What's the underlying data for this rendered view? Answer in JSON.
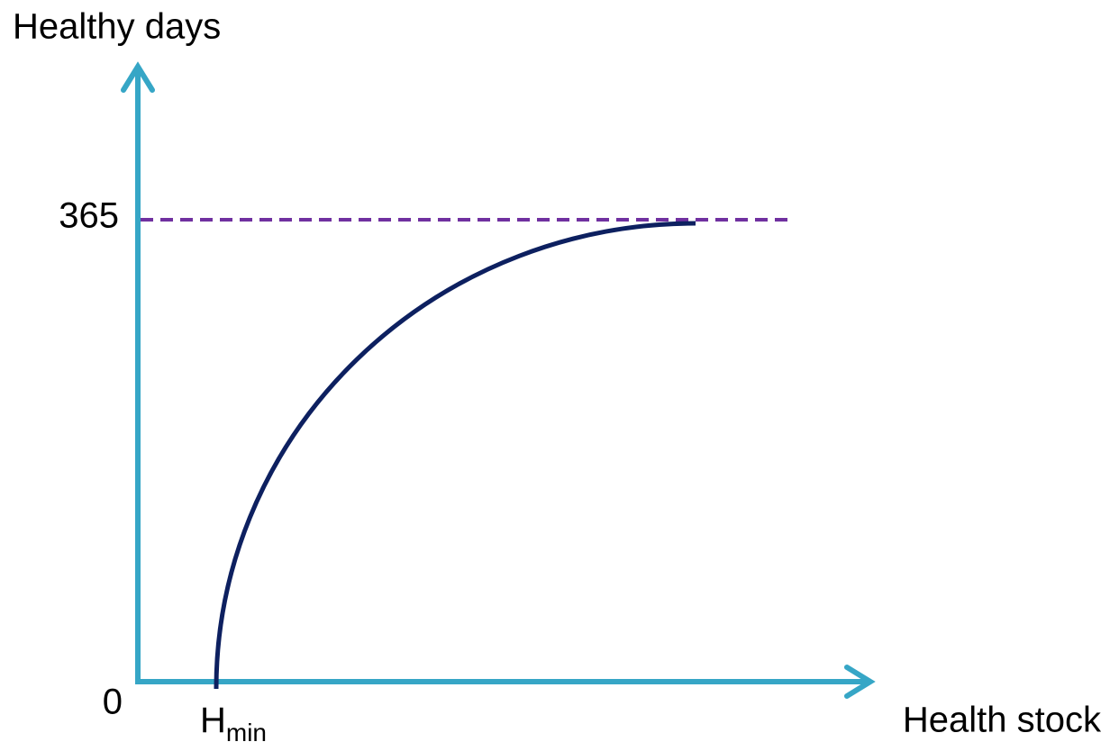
{
  "y_axis": {
    "label": "Healthy days",
    "ticks": [
      0,
      365
    ]
  },
  "x_axis": {
    "label": "Health stock",
    "marker": {
      "base": "H",
      "subscript": "min"
    }
  }
}
